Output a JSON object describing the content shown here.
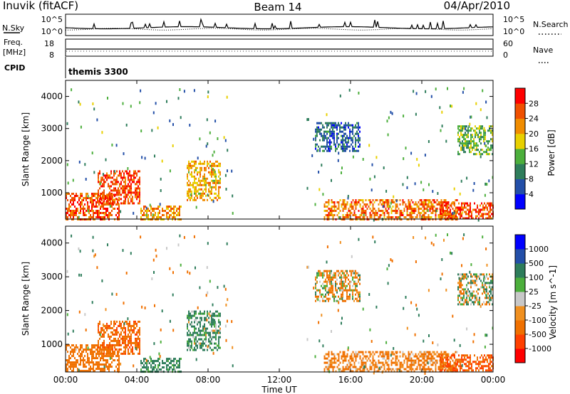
{
  "header": {
    "station": "Inuvik (fitACF)",
    "beam": "Beam 14",
    "date": "04/Apr/2010"
  },
  "noise_panel": {
    "left_label": "N.Sky",
    "right_label": "N.Search",
    "left_ticks": [
      "10^5",
      "10^0"
    ],
    "right_ticks": [
      "10^5",
      "10^0"
    ]
  },
  "freq_panel": {
    "label_line1": "Freq.",
    "label_line2": "[MHz]",
    "left_ticks": [
      "18",
      "8"
    ],
    "right_label": "Nave",
    "right_ticks": [
      "60",
      "0"
    ]
  },
  "cpid_panel": {
    "label": "CPID",
    "program": "themis 3300"
  },
  "x_axis": {
    "label": "Time UT",
    "ticks": [
      "00:00",
      "04:00",
      "08:00",
      "12:00",
      "16:00",
      "20:00",
      "00:00"
    ]
  },
  "power_panel": {
    "ylabel": "Slant Range [km]",
    "yticks": [
      "4000",
      "3000",
      "2000",
      "1000"
    ],
    "colorbar_label": "Power [dB]",
    "colorbar_ticks": [
      "28",
      "24",
      "20",
      "16",
      "12",
      "8",
      "4"
    ],
    "colors": [
      "#0000ff",
      "#234fa8",
      "#2e7d5b",
      "#4caf3c",
      "#e8d000",
      "#f08c00",
      "#f05000",
      "#ff0000"
    ]
  },
  "velocity_panel": {
    "ylabel": "Slant Range [km]",
    "yticks": [
      "4000",
      "3000",
      "2000",
      "1000"
    ],
    "colorbar_label": "Velocity [m s^-1]",
    "colorbar_ticks": [
      "1000",
      "500",
      "100",
      "25",
      "-25",
      "-100",
      "-500",
      "-1000"
    ],
    "colors": [
      "#ff0000",
      "#ff4000",
      "#f07000",
      "#f09020",
      "#c8c8c8",
      "#4caf3c",
      "#2e7d5b",
      "#234fa8",
      "#0000ff"
    ]
  },
  "chart_data": {
    "type": "heatmap",
    "title": "Inuvik (fitACF) Beam 14 04/Apr/2010",
    "xlabel": "Time UT",
    "ylabel": "Slant Range [km]",
    "xlim": [
      "00:00",
      "24:00"
    ],
    "ylim": [
      180,
      4500
    ],
    "power_scale_db": [
      0,
      32
    ],
    "velocity_scale_ms": [
      -1000,
      1000
    ],
    "echo_regions": [
      {
        "start_hour": 0.0,
        "end_hour": 3.0,
        "range_min_km": 200,
        "range_max_km": 1000,
        "power_db": 26,
        "velocity_ms": -300
      },
      {
        "start_hour": 1.8,
        "end_hour": 4.2,
        "range_min_km": 700,
        "range_max_km": 1700,
        "power_db": 27,
        "velocity_ms": -400
      },
      {
        "start_hour": 4.2,
        "end_hour": 6.5,
        "range_min_km": 200,
        "range_max_km": 600,
        "power_db": 22,
        "velocity_ms": 200
      },
      {
        "start_hour": 6.8,
        "end_hour": 8.7,
        "range_min_km": 800,
        "range_max_km": 2000,
        "power_db": 20,
        "velocity_ms": 150
      },
      {
        "start_hour": 14.5,
        "end_hour": 22.0,
        "range_min_km": 200,
        "range_max_km": 800,
        "power_db": 24,
        "velocity_ms": -200
      },
      {
        "start_hour": 21.0,
        "end_hour": 24.0,
        "range_min_km": 200,
        "range_max_km": 700,
        "power_db": 27,
        "velocity_ms": -500
      },
      {
        "start_hour": 14.0,
        "end_hour": 16.5,
        "range_min_km": 2300,
        "range_max_km": 3200,
        "power_db": 8,
        "velocity_ms": -50
      },
      {
        "start_hour": 22.0,
        "end_hour": 24.0,
        "range_min_km": 2200,
        "range_max_km": 3100,
        "power_db": 14,
        "velocity_ms": 10
      }
    ]
  }
}
